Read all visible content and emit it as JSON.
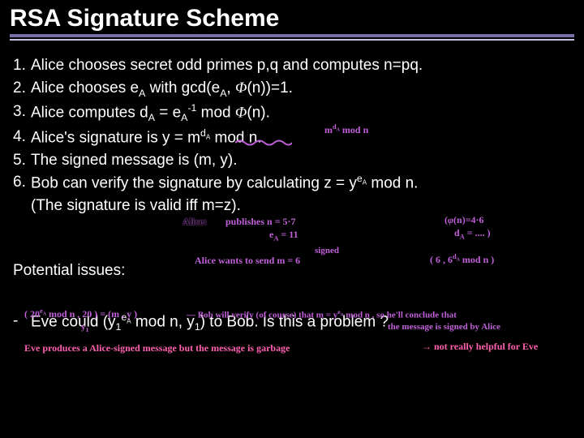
{
  "colors": {
    "background": "#000000",
    "text": "#ffffff",
    "underline_thick": "#7a6fa8",
    "underline_thin": "#c8c0e0",
    "hand": "#c060d8",
    "hand_alt": "#ff60b0"
  },
  "title": "RSA Signature Scheme",
  "steps": [
    {
      "num": "1.",
      "text_html": "Alice chooses secret odd primes p,q and computes n=pq."
    },
    {
      "num": "2.",
      "text_html": "Alice chooses e<sub>A</sub> with gcd(e<sub>A</sub>, <span class='phi'>Φ</span>(n))=1."
    },
    {
      "num": "3.",
      "text_html": "Alice computes d<sub>A</sub> = e<sub>A</sub><sup>-1</sup> mod <span class='phi'>Φ</span>(n)."
    },
    {
      "num": "4.",
      "text_html": "Alice's signature is y = m<sup>d<sub>A</sub></sup> mod n."
    },
    {
      "num": "5.",
      "text_html": "The signed message is (m, y)."
    },
    {
      "num": "6.",
      "text_html": "Bob can verify the signature by calculating z = y<sup>e<sub>A</sub></sup> mod n."
    }
  ],
  "step6_tail": "(The signature is valid iff m=z).",
  "potential_label": "Potential issues:",
  "issue_text_html": "Eve could (y<sub>1</sub><sup>e<sub>A</sub></sup> mod n, y<sub>1</sub>) to Bob. Is this a problem ?",
  "annotations": {
    "sig_note": "m<sup>d<sub>A</sub></sup> mod n",
    "alice_label": "Alice:",
    "publishes": "publishes  n = 5·7",
    "ea_line": "e<sub>A</sub> = 11",
    "phi_calc": "(<span class='phi'>φ</span>(n)=4·6",
    "da_calc": "d<sub>A</sub> = ....  )",
    "alice_wants": "Alice wants to send m = 6",
    "signed_label": "signed",
    "signed_pair": "( 6 , 6<sup>d<sub>A</sub></sup> mod n )",
    "eve_pair": "( 20<sup>e<sub>A</sub></sup> mod n , 20 )  =  (m , y )",
    "eve_pair_sub": "y<sub>1</sub>",
    "bob_verify": "— Bob will verify (of course) that m = y<sup>e<sub>A</sub></sup> mod n , so he'll conclude that",
    "bob_verify2": "the message is signed by Alice",
    "eve_produces": "Eve  produces  a  Alice-signed message  but the message is garbage",
    "arrow_tail": "→ not really helpful for Eve"
  },
  "layout": {
    "title_fontsize": 30,
    "body_fontsize": 19,
    "hand_fontsize_small": 12,
    "hand_fontsize_tiny": 11,
    "slide_width": 720,
    "slide_height": 540
  }
}
